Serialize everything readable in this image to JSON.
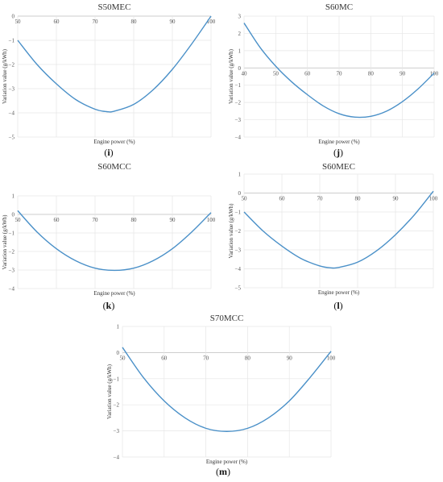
{
  "chart_data": [
    {
      "id": "i",
      "type": "line",
      "title": "S50MEC",
      "caption": "i",
      "xlabel": "Engine power (%)",
      "ylabel": "Variation value (g/kWh)",
      "xlim": [
        50,
        100
      ],
      "ylim": [
        -5,
        0
      ],
      "xticks": [
        50,
        60,
        70,
        80,
        90,
        100
      ],
      "yticks": [
        0,
        -1,
        -2,
        -3,
        -4,
        -5
      ],
      "ytick_labels": [
        "0",
        "−1",
        "−2",
        "−3",
        "−4",
        "−5"
      ],
      "grid": true,
      "series": [
        {
          "color": "#4a90c8",
          "x": [
            50,
            55,
            60,
            65,
            70,
            73,
            75,
            80,
            85,
            90,
            95,
            100
          ],
          "y": [
            -1.0,
            -2.0,
            -2.8,
            -3.45,
            -3.85,
            -3.95,
            -3.93,
            -3.65,
            -3.05,
            -2.2,
            -1.15,
            0.0
          ]
        }
      ]
    },
    {
      "id": "j",
      "type": "line",
      "title": "S60MC",
      "caption": "j",
      "xlabel": "Engine power (%)",
      "ylabel": "Variation value (g/kWh)",
      "xlim": [
        40,
        100
      ],
      "ylim": [
        -4,
        3
      ],
      "xticks": [
        40,
        50,
        60,
        70,
        80,
        90,
        100
      ],
      "yticks": [
        3,
        2,
        1,
        0,
        -1,
        -2,
        -3,
        -4
      ],
      "ytick_labels": [
        "3",
        "2",
        "1",
        "0",
        "−1",
        "−2",
        "−3",
        "−4"
      ],
      "grid": true,
      "series": [
        {
          "color": "#4a90c8",
          "x": [
            40,
            45,
            50,
            55,
            60,
            65,
            70,
            75,
            80,
            85,
            90,
            95,
            100
          ],
          "y": [
            2.6,
            1.2,
            0.1,
            -0.8,
            -1.55,
            -2.2,
            -2.65,
            -2.85,
            -2.8,
            -2.5,
            -1.95,
            -1.2,
            -0.3
          ]
        }
      ]
    },
    {
      "id": "k",
      "type": "line",
      "title": "S60MCC",
      "caption": "k",
      "xlabel": "Engine power (%)",
      "ylabel": "Variation value (g/kWh)",
      "xlim": [
        50,
        100
      ],
      "ylim": [
        -4,
        1
      ],
      "xticks": [
        50,
        60,
        70,
        80,
        90,
        100
      ],
      "yticks": [
        1,
        0,
        -1,
        -2,
        -3,
        -4
      ],
      "ytick_labels": [
        "1",
        "0",
        "−1",
        "−2",
        "−3",
        "−4"
      ],
      "grid": true,
      "series": [
        {
          "color": "#4a90c8",
          "x": [
            50,
            55,
            60,
            65,
            70,
            75,
            80,
            85,
            90,
            95,
            100
          ],
          "y": [
            0.2,
            -0.95,
            -1.85,
            -2.5,
            -2.9,
            -3.02,
            -2.9,
            -2.5,
            -1.85,
            -0.95,
            0.1
          ]
        }
      ]
    },
    {
      "id": "l",
      "type": "line",
      "title": "S60MEC",
      "caption": "l",
      "xlabel": "Engine power (%)",
      "ylabel": "Variation value (g/kWh)",
      "xlim": [
        50,
        100
      ],
      "ylim": [
        -5,
        1
      ],
      "xticks": [
        50,
        60,
        70,
        80,
        90,
        100
      ],
      "yticks": [
        1,
        0,
        -1,
        -2,
        -3,
        -4,
        -5
      ],
      "ytick_labels": [
        "1",
        "0",
        "−1",
        "−2",
        "−3",
        "−4",
        "−5"
      ],
      "grid": true,
      "series": [
        {
          "color": "#4a90c8",
          "x": [
            50,
            55,
            60,
            65,
            70,
            73,
            75,
            80,
            85,
            90,
            95,
            100
          ],
          "y": [
            -1.0,
            -2.0,
            -2.8,
            -3.45,
            -3.85,
            -3.95,
            -3.93,
            -3.65,
            -3.05,
            -2.2,
            -1.15,
            0.1
          ]
        }
      ]
    },
    {
      "id": "m",
      "type": "line",
      "title": "S70MCC",
      "caption": "m",
      "xlabel": "Engine power (%)",
      "ylabel": "Variation value (g/kWh)",
      "xlim": [
        50,
        100
      ],
      "ylim": [
        -4,
        1
      ],
      "xticks": [
        50,
        60,
        70,
        80,
        90,
        100
      ],
      "yticks": [
        1,
        0,
        -1,
        -2,
        -3,
        -4
      ],
      "ytick_labels": [
        "1",
        "0",
        "−1",
        "−2",
        "−3",
        "−4"
      ],
      "grid": true,
      "series": [
        {
          "color": "#4a90c8",
          "x": [
            50,
            55,
            60,
            65,
            70,
            75,
            80,
            85,
            90,
            95,
            100
          ],
          "y": [
            0.2,
            -0.95,
            -1.85,
            -2.5,
            -2.9,
            -3.02,
            -2.9,
            -2.5,
            -1.85,
            -0.95,
            0.05
          ]
        }
      ]
    }
  ]
}
